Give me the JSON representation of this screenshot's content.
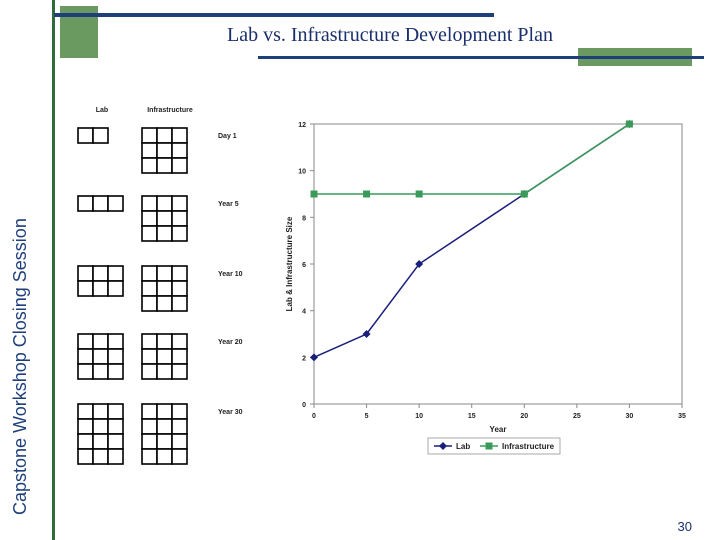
{
  "sidebar": {
    "text": "Capstone Workshop Closing Session"
  },
  "title": "Lab vs. Infrastructure Development Plan",
  "page_number": "30",
  "diagram": {
    "col_headers": [
      "Lab",
      "Infrastructure"
    ],
    "rows": [
      {
        "label": "Day 1",
        "lab_cells": 2,
        "infra_cells": 9
      },
      {
        "label": "Year 5",
        "lab_cells": 3,
        "infra_cells": 9
      },
      {
        "label": "Year 10",
        "lab_cells": 6,
        "infra_cells": 9
      },
      {
        "label": "Year 20",
        "lab_cells": 9,
        "infra_cells": 9
      },
      {
        "label": "Year 30",
        "lab_cells": 12,
        "infra_cells": 12
      }
    ]
  },
  "colors": {
    "lab": "#1a1f7a",
    "infrastructure": "#3a9a5a",
    "accent_green": "#6a9a5f",
    "navy": "#1f3f7a"
  },
  "chart_data": {
    "type": "line",
    "xlabel": "Year",
    "ylabel": "Lab & Infrastructure Size",
    "xlim": [
      0,
      35
    ],
    "ylim": [
      0,
      12
    ],
    "x_ticks": [
      "0",
      "5",
      "10",
      "15",
      "20",
      "25",
      "30",
      "35"
    ],
    "y_ticks": [
      "0",
      "2",
      "4",
      "6",
      "8",
      "10",
      "12"
    ],
    "grid": false,
    "legend": "bottom",
    "series": [
      {
        "name": "Lab",
        "x": [
          0,
          5,
          10,
          20,
          30
        ],
        "y": [
          2,
          3,
          6,
          9,
          12
        ]
      },
      {
        "name": "Infrastructure",
        "x": [
          0,
          5,
          10,
          20,
          30
        ],
        "y": [
          9,
          9,
          9,
          9,
          12
        ]
      }
    ]
  }
}
